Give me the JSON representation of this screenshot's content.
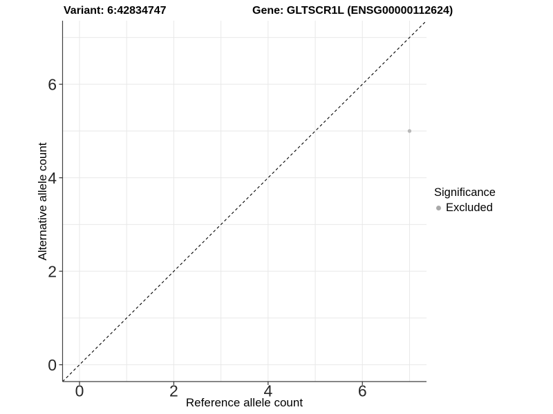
{
  "header": {
    "title_left": "Variant: 6:42834747",
    "title_right": "Gene: GLTSCR1L (ENSG00000112624)"
  },
  "chart_data": {
    "type": "scatter",
    "title_left": "Variant: 6:42834747",
    "title_right": "Gene: GLTSCR1L (ENSG00000112624)",
    "xlabel": "Reference allele count",
    "ylabel": "Alternative allele count",
    "xlim": [
      -0.36,
      7.36
    ],
    "ylim": [
      -0.36,
      7.36
    ],
    "x_ticks": [
      0,
      2,
      4,
      6
    ],
    "y_ticks": [
      0,
      2,
      4,
      6
    ],
    "grid_x": [
      0,
      1,
      2,
      3,
      4,
      5,
      6,
      7
    ],
    "grid_y": [
      0,
      1,
      2,
      3,
      4,
      5,
      6,
      7
    ],
    "grid_on": true,
    "points": [
      {
        "x": 7,
        "y": 5,
        "series": "Excluded"
      }
    ],
    "reference_line": {
      "type": "identity",
      "slope": 1,
      "intercept": 0,
      "style": "dashed"
    },
    "legend": {
      "title": "Significance",
      "position": "right",
      "items": [
        {
          "label": "Excluded",
          "color": "#a9a9a9"
        }
      ]
    },
    "colors": {
      "point": "#b8b8b8",
      "grid": "#e8e8e8",
      "axis_line": "#3f3f3f",
      "tick_mark": "#333333",
      "tick_label": "#262626",
      "reference_line": "#000000",
      "background": "#ffffff"
    }
  }
}
